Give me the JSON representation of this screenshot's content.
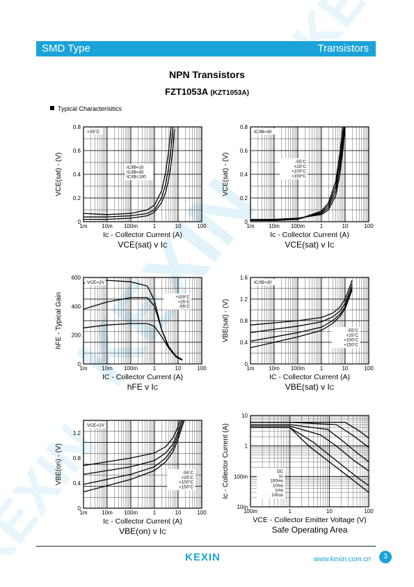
{
  "header": {
    "left": "SMD Type",
    "right": "Transistors"
  },
  "title": {
    "line1": "NPN  Transistors",
    "part": "FZT1053A",
    "alt": "(KZT1053A)"
  },
  "section": {
    "label": "Typical  Characterisitics"
  },
  "footer": {
    "logo": "KEXIN",
    "website": "www.kexin.com.cn",
    "page": "3"
  },
  "watermark": {
    "text": "KEXIN"
  },
  "colors": {
    "accent": "#1aa3d9"
  },
  "chart_data": [
    {
      "id": "c1",
      "type": "line",
      "xscale": "log",
      "xlim": [
        0.001,
        100
      ],
      "ylim": [
        0,
        0.8
      ],
      "xticks": [
        "1m",
        "10m",
        "100m",
        "1",
        "10",
        "100"
      ],
      "yticks": [
        "0",
        "0.2",
        "0.4",
        "0.6",
        "0.8"
      ],
      "ylabel": "VCE(sat) - (V)",
      "xlabel": "Ic - Collector Current (A)",
      "caption_main": "VCE(sat)",
      "caption_tail": "v I",
      "caption_sub": "C",
      "condition": "+25°C",
      "legend": [
        "IC/IB=10",
        "IC/IB=30",
        "IC/IB=100"
      ],
      "series": [
        {
          "name": "IC/IB=10",
          "x": [
            0.001,
            0.01,
            0.1,
            0.5,
            1,
            2,
            3,
            4,
            5,
            6,
            7
          ],
          "y": [
            0.02,
            0.02,
            0.03,
            0.05,
            0.08,
            0.16,
            0.25,
            0.36,
            0.48,
            0.62,
            0.78
          ]
        },
        {
          "name": "IC/IB=30",
          "x": [
            0.001,
            0.01,
            0.1,
            0.5,
            1,
            2,
            3,
            4,
            5,
            6
          ],
          "y": [
            0.04,
            0.04,
            0.05,
            0.07,
            0.1,
            0.2,
            0.32,
            0.46,
            0.62,
            0.8
          ]
        },
        {
          "name": "IC/IB=100",
          "x": [
            0.001,
            0.01,
            0.1,
            0.5,
            1,
            2,
            3,
            4,
            5
          ],
          "y": [
            0.07,
            0.06,
            0.07,
            0.1,
            0.14,
            0.26,
            0.42,
            0.6,
            0.8
          ]
        }
      ]
    },
    {
      "id": "c2",
      "type": "line",
      "xscale": "log",
      "xlim": [
        0.001,
        100
      ],
      "ylim": [
        0,
        0.8
      ],
      "xticks": [
        "1m",
        "10m",
        "100m",
        "1",
        "10",
        "100"
      ],
      "yticks": [
        "0",
        "0.2",
        "0.4",
        "0.6",
        "0.8"
      ],
      "ylabel": "VCE(sat) - (V)",
      "xlabel": "Ic - Collector Current (A)",
      "caption_main": "VCE(sat)",
      "caption_tail": "v I",
      "caption_sub": "C",
      "condition": "IC/IB=30",
      "legend": [
        "-55°C",
        "+25°C",
        "+100°C",
        "+150°C"
      ],
      "series": [
        {
          "name": "-55°C",
          "x": [
            0.001,
            0.01,
            0.1,
            1,
            2,
            4,
            6,
            8,
            10
          ],
          "y": [
            0.02,
            0.02,
            0.03,
            0.06,
            0.1,
            0.22,
            0.4,
            0.6,
            0.8
          ]
        },
        {
          "name": "+25°C",
          "x": [
            0.001,
            0.01,
            0.1,
            1,
            2,
            4,
            6,
            8,
            9.5
          ],
          "y": [
            0.01,
            0.015,
            0.025,
            0.07,
            0.12,
            0.26,
            0.46,
            0.66,
            0.8
          ]
        },
        {
          "name": "+100°C",
          "x": [
            0.001,
            0.01,
            0.1,
            1,
            2,
            4,
            6,
            8,
            9
          ],
          "y": [
            0.01,
            0.01,
            0.02,
            0.08,
            0.14,
            0.3,
            0.52,
            0.72,
            0.8
          ]
        },
        {
          "name": "+150°C",
          "x": [
            0.001,
            0.01,
            0.1,
            1,
            2,
            4,
            6,
            8
          ],
          "y": [
            0.01,
            0.01,
            0.02,
            0.09,
            0.16,
            0.34,
            0.58,
            0.8
          ]
        }
      ]
    },
    {
      "id": "c3",
      "type": "line",
      "xscale": "log",
      "xlim": [
        0.001,
        100
      ],
      "ylim": [
        0,
        600
      ],
      "xticks": [
        "1m",
        "10m",
        "100m",
        "1",
        "10",
        "100"
      ],
      "yticks": [
        "0",
        "200",
        "400",
        "600"
      ],
      "ylabel": "hFE - Typical Gain",
      "xlabel": "IC - Collector Current (A)",
      "caption_main": "hFE",
      "caption_tail": "v I",
      "caption_sub": "C",
      "condition": "VCE=2V",
      "legend": [
        "+100°C",
        "+25°C",
        "-55°C"
      ],
      "series": [
        {
          "name": "+100°C",
          "x": [
            0.001,
            0.01,
            0.1,
            0.5,
            1,
            2,
            4,
            8,
            15
          ],
          "y": [
            560,
            580,
            570,
            540,
            440,
            240,
            110,
            50,
            25
          ]
        },
        {
          "name": "+25°C",
          "x": [
            0.001,
            0.01,
            0.1,
            0.5,
            1,
            2,
            4,
            8,
            15
          ],
          "y": [
            380,
            430,
            460,
            460,
            400,
            240,
            120,
            55,
            30
          ]
        },
        {
          "name": "-55°C",
          "x": [
            0.001,
            0.01,
            0.1,
            0.5,
            1,
            2,
            4,
            8,
            15
          ],
          "y": [
            250,
            270,
            280,
            280,
            260,
            190,
            110,
            55,
            30
          ]
        }
      ]
    },
    {
      "id": "c4",
      "type": "line",
      "xscale": "log",
      "xlim": [
        0.001,
        100
      ],
      "ylim": [
        0,
        1.6
      ],
      "xticks": [
        "1m",
        "10m",
        "100m",
        "1",
        "10",
        "100"
      ],
      "yticks": [
        "0",
        "0.4",
        "0.8",
        "1.2",
        "1.6"
      ],
      "ylabel": "VBE(sat) - (V)",
      "xlabel": "IC - Collector Current (A)",
      "caption_main": "VBE(sat)",
      "caption_tail": "v I",
      "caption_sub": "C",
      "condition": "IC/IB=30",
      "legend": [
        "-55°C",
        "+25°C",
        "+100°C",
        "+150°C"
      ],
      "series": [
        {
          "name": "-55°C",
          "x": [
            0.001,
            0.01,
            0.1,
            1,
            3,
            6,
            10,
            20
          ],
          "y": [
            0.72,
            0.76,
            0.8,
            0.86,
            0.94,
            1.05,
            1.2,
            1.55
          ]
        },
        {
          "name": "+25°C",
          "x": [
            0.001,
            0.01,
            0.1,
            1,
            3,
            6,
            10,
            20
          ],
          "y": [
            0.58,
            0.64,
            0.7,
            0.78,
            0.87,
            0.98,
            1.12,
            1.48
          ]
        },
        {
          "name": "+100°C",
          "x": [
            0.001,
            0.01,
            0.1,
            1,
            3,
            6,
            10,
            20
          ],
          "y": [
            0.42,
            0.5,
            0.58,
            0.68,
            0.8,
            0.92,
            1.06,
            1.42
          ]
        },
        {
          "name": "+150°C",
          "x": [
            0.001,
            0.01,
            0.1,
            1,
            3,
            6,
            10,
            20
          ],
          "y": [
            0.3,
            0.4,
            0.5,
            0.62,
            0.75,
            0.88,
            1.02,
            1.38
          ]
        }
      ]
    },
    {
      "id": "c5",
      "type": "line",
      "xscale": "log",
      "xlim": [
        0.001,
        100
      ],
      "ylim": [
        0,
        1.4
      ],
      "xticks": [
        "1m",
        "10m",
        "100m",
        "1",
        "10",
        "100"
      ],
      "yticks": [
        "0",
        "0.4",
        "0.8",
        "1.2"
      ],
      "ylabel": "VBE(on) - (V)",
      "xlabel": "Ic - Collector Current (A)",
      "caption_main": "VBE(on)",
      "caption_tail": "v I",
      "caption_sub": "C",
      "condition": "VCE=2V",
      "legend": [
        "-55°C",
        "+25°C",
        "+100°C",
        "+150°C"
      ],
      "series": [
        {
          "name": "-55°C",
          "x": [
            0.001,
            0.01,
            0.1,
            1,
            3,
            6,
            10,
            12
          ],
          "y": [
            0.68,
            0.74,
            0.8,
            0.88,
            0.98,
            1.12,
            1.3,
            1.4
          ]
        },
        {
          "name": "+25°C",
          "x": [
            0.001,
            0.01,
            0.1,
            1,
            3,
            6,
            10,
            14
          ],
          "y": [
            0.54,
            0.6,
            0.66,
            0.76,
            0.88,
            1.02,
            1.22,
            1.4
          ]
        },
        {
          "name": "+100°C",
          "x": [
            0.001,
            0.01,
            0.1,
            1,
            3,
            6,
            10,
            16
          ],
          "y": [
            0.38,
            0.46,
            0.54,
            0.66,
            0.8,
            0.96,
            1.16,
            1.4
          ]
        },
        {
          "name": "+150°C",
          "x": [
            0.001,
            0.01,
            0.1,
            1,
            3,
            6,
            10,
            18
          ],
          "y": [
            0.26,
            0.36,
            0.46,
            0.6,
            0.74,
            0.9,
            1.1,
            1.4
          ]
        }
      ]
    },
    {
      "id": "c6",
      "type": "line",
      "xscale": "log",
      "yscale": "log",
      "xlim": [
        0.1,
        100
      ],
      "ylim": [
        0.01,
        10
      ],
      "xticks": [
        "100m",
        "1",
        "10",
        "100"
      ],
      "yticks": [
        "10m",
        "100m",
        "1",
        "10"
      ],
      "ylabel": "Ic - Collector Current (A)",
      "xlabel": "VCE - Collector Emitter Voltage (V)",
      "caption_main": "Safe Operating Area",
      "caption_tail": "",
      "caption_sub": "",
      "condition": "",
      "legend": [
        "DC",
        "1s",
        "100ms",
        "10ms",
        "1ms",
        "100us"
      ],
      "series": [
        {
          "name": "DC",
          "x": [
            0.1,
            1,
            3,
            10,
            30,
            60,
            100
          ],
          "y": [
            4,
            4,
            1,
            0.3,
            0.1,
            0.05,
            0.03
          ]
        },
        {
          "name": "1s",
          "x": [
            0.1,
            1,
            4,
            10,
            30,
            60,
            100
          ],
          "y": [
            4,
            4,
            1.3,
            0.5,
            0.16,
            0.08,
            0.05
          ]
        },
        {
          "name": "100ms",
          "x": [
            0.1,
            1,
            6,
            15,
            40,
            100
          ],
          "y": [
            4.5,
            4.5,
            2.3,
            1,
            0.35,
            0.15
          ]
        },
        {
          "name": "10ms",
          "x": [
            0.1,
            1,
            9,
            20,
            50,
            100
          ],
          "y": [
            5,
            5,
            3.5,
            1.6,
            0.6,
            0.3
          ]
        },
        {
          "name": "1ms",
          "x": [
            0.1,
            1,
            15,
            40,
            100
          ],
          "y": [
            6,
            6,
            5,
            2.2,
            0.9
          ]
        },
        {
          "name": "100us",
          "x": [
            0.1,
            1,
            25,
            60,
            100
          ],
          "y": [
            6,
            6,
            6,
            3,
            1.8
          ]
        }
      ]
    }
  ]
}
